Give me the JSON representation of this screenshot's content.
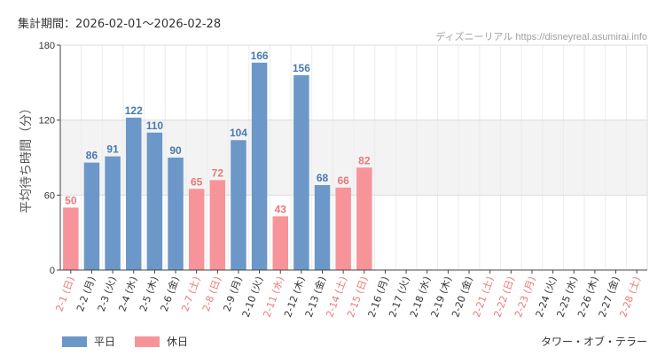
{
  "header": {
    "period": "集計期間：2026-02-01～2026-02-28",
    "source": "ディズニーリアル https://disneyreal.asumirai.info"
  },
  "footer": {
    "attraction": "タワー・オブ・テラー"
  },
  "legend": {
    "weekday_label": "平日",
    "holiday_label": "休日"
  },
  "colors": {
    "weekday": "#6b98c8",
    "holiday": "#f7949a",
    "holiday_text": "#e87878",
    "weekday_text": "#4a78b0",
    "band": "#f3f3f3",
    "axis": "#444444",
    "grid": "#dddddd"
  },
  "chart_data": {
    "type": "bar",
    "ylabel": "平均待ち時間（分）",
    "ylim": [
      0,
      180
    ],
    "yticks": [
      0,
      60,
      120,
      180
    ],
    "highlight_band": [
      60,
      120
    ],
    "categories": [
      "2-1 (日)",
      "2-2 (月)",
      "2-3 (火)",
      "2-4 (水)",
      "2-5 (木)",
      "2-6 (金)",
      "2-7 (土)",
      "2-8 (日)",
      "2-9 (月)",
      "2-10 (火)",
      "2-11 (水)",
      "2-12 (木)",
      "2-13 (金)",
      "2-14 (土)",
      "2-15 (日)",
      "2-16 (月)",
      "2-17 (火)",
      "2-18 (水)",
      "2-19 (木)",
      "2-20 (金)",
      "2-21 (土)",
      "2-22 (日)",
      "2-23 (月)",
      "2-24 (火)",
      "2-25 (水)",
      "2-26 (木)",
      "2-27 (金)",
      "2-28 (土)"
    ],
    "values": [
      50,
      86,
      91,
      122,
      110,
      90,
      65,
      72,
      104,
      166,
      43,
      156,
      68,
      66,
      82,
      null,
      null,
      null,
      null,
      null,
      null,
      null,
      null,
      null,
      null,
      null,
      null,
      null
    ],
    "day_type": [
      "holiday",
      "weekday",
      "weekday",
      "weekday",
      "weekday",
      "weekday",
      "holiday",
      "holiday",
      "weekday",
      "weekday",
      "holiday",
      "weekday",
      "weekday",
      "holiday",
      "holiday",
      "weekday",
      "weekday",
      "weekday",
      "weekday",
      "weekday",
      "holiday",
      "holiday",
      "holiday",
      "weekday",
      "weekday",
      "weekday",
      "weekday",
      "holiday"
    ]
  }
}
